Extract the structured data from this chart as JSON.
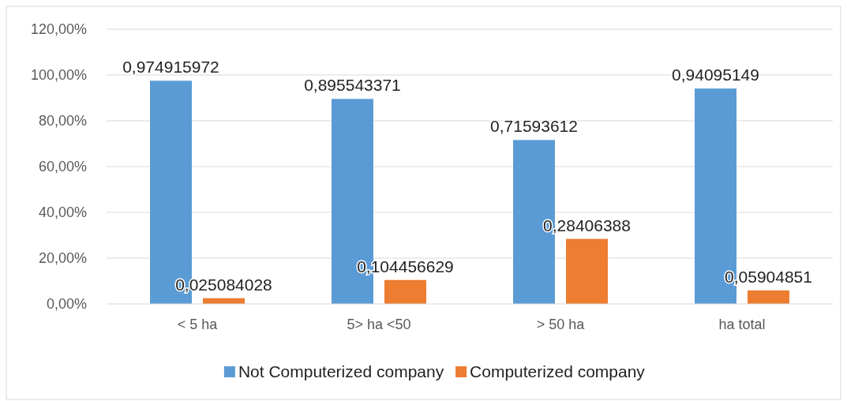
{
  "chart_data": {
    "type": "bar",
    "categories": [
      "< 5 ha",
      "5> ha <50",
      "> 50 ha",
      "ha total"
    ],
    "series": [
      {
        "name": "Not Computerized company",
        "color": "#5b9bd5",
        "values": [
          0.974915972,
          0.895543371,
          0.71593612,
          0.94095149
        ],
        "value_labels": [
          "0,974915972",
          "0,895543371",
          "0,71593612",
          "0,94095149"
        ]
      },
      {
        "name": "Computerized company",
        "color": "#ed7d31",
        "values": [
          0.025084028,
          0.104456629,
          0.28406388,
          0.05904851
        ],
        "value_labels": [
          "0,025084028",
          "0,104456629",
          "0,28406388",
          "0,05904851"
        ]
      }
    ],
    "ylim": [
      0,
      1.2
    ],
    "yticks": [
      {
        "value": 0,
        "label": "0,00%"
      },
      {
        "value": 0.2,
        "label": "20,00%"
      },
      {
        "value": 0.4,
        "label": "40,00%"
      },
      {
        "value": 0.6,
        "label": "60,00%"
      },
      {
        "value": 0.8,
        "label": "80,00%"
      },
      {
        "value": 1,
        "label": "100,00%"
      },
      {
        "value": 1.2,
        "label": "120,00%"
      }
    ],
    "grid": "y",
    "legend": "bottom"
  }
}
